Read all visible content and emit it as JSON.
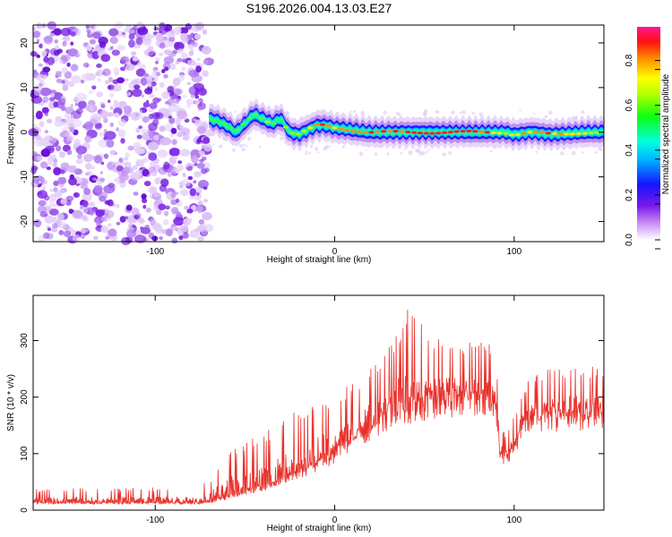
{
  "title": "S196.2026.004.13.03.E27",
  "chart_data": [
    {
      "type": "heatmap",
      "name": "spectrogram",
      "xlabel": "Height of straight line (km)",
      "ylabel": "Frequency (Hz)",
      "xlim": [
        -168,
        150
      ],
      "ylim": [
        -24.5,
        24
      ],
      "x_ticks": [
        -100,
        0,
        100
      ],
      "y_ticks": [
        -20,
        -10,
        0,
        10,
        20
      ],
      "noise_region_x": [
        -168,
        -70
      ],
      "ridge": {
        "x": [
          -70,
          -65,
          -60,
          -55,
          -50,
          -45,
          -40,
          -35,
          -30,
          -25,
          -20,
          -15,
          -10,
          -5,
          0,
          10,
          20,
          40,
          60,
          80,
          95,
          100,
          110,
          120,
          130,
          140,
          150
        ],
        "freq": [
          3,
          2.5,
          1.5,
          0,
          2,
          4,
          3,
          2,
          3,
          0,
          -0.5,
          0.5,
          1.5,
          1.5,
          1,
          0.5,
          0,
          0,
          0,
          0,
          0,
          -0.5,
          0,
          -0.5,
          -0.3,
          0,
          0
        ],
        "amplitude": [
          0.3,
          0.35,
          0.35,
          0.3,
          0.35,
          0.35,
          0.45,
          0.5,
          0.45,
          0.5,
          0.55,
          0.6,
          0.75,
          0.85,
          0.7,
          0.75,
          0.8,
          0.85,
          0.85,
          0.85,
          0.6,
          0.7,
          0.75,
          0.75,
          0.7,
          0.6,
          0.55
        ]
      },
      "colorbar": {
        "label": "Normalized spectral amplitude",
        "min": 0.0,
        "max": 0.95,
        "ticks": [
          0.0,
          0.2,
          0.4,
          0.6,
          0.8
        ],
        "tick_labels": [
          "0.0",
          "0.2",
          "0.4",
          "0.6",
          "0.8"
        ]
      }
    },
    {
      "type": "line",
      "name": "snr",
      "xlabel": "Height of straight line (km)",
      "ylabel": "SNR (10 * v/v)",
      "xlim": [
        -168,
        150
      ],
      "ylim": [
        0,
        380
      ],
      "x_ticks": [
        -100,
        0,
        100
      ],
      "y_ticks": [
        0,
        100,
        200,
        300
      ],
      "color": "#e8302a",
      "series": [
        {
          "name": "SNR",
          "x": [
            -168,
            -140,
            -110,
            -80,
            -70,
            -60,
            -50,
            -40,
            -30,
            -20,
            -10,
            0,
            10,
            20,
            30,
            40,
            50,
            60,
            70,
            80,
            90,
            92,
            96,
            100,
            105,
            110,
            120,
            130,
            140,
            150
          ],
          "base": [
            12,
            12,
            12,
            12,
            14,
            22,
            30,
            40,
            50,
            65,
            80,
            95,
            120,
            145,
            165,
            175,
            180,
            190,
            195,
            190,
            180,
            95,
            95,
            105,
            150,
            155,
            160,
            165,
            165,
            165
          ],
          "peak": [
            38,
            40,
            40,
            42,
            55,
            110,
            125,
            135,
            160,
            180,
            205,
            205,
            230,
            260,
            290,
            360,
            340,
            300,
            305,
            300,
            300,
            140,
            140,
            170,
            220,
            240,
            250,
            255,
            255,
            255
          ]
        }
      ]
    }
  ]
}
